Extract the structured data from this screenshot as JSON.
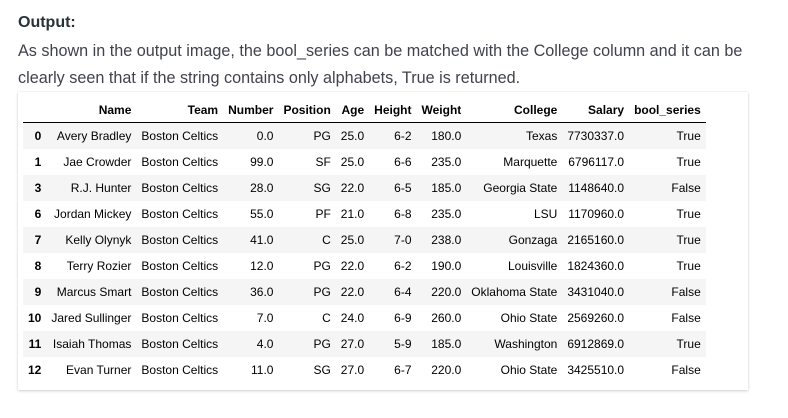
{
  "heading": "Output:",
  "paragraph": "As shown in the output image, the bool_series can be matched with the College column and it can be clearly seen that if the string contains only alphabets, True is returned.",
  "table": {
    "columns": [
      "",
      "Name",
      "Team",
      "Number",
      "Position",
      "Age",
      "Height",
      "Weight",
      "College",
      "Salary",
      "bool_series"
    ],
    "rows": [
      [
        "0",
        "Avery Bradley",
        "Boston Celtics",
        "0.0",
        "PG",
        "25.0",
        "6-2",
        "180.0",
        "Texas",
        "7730337.0",
        "True"
      ],
      [
        "1",
        "Jae Crowder",
        "Boston Celtics",
        "99.0",
        "SF",
        "25.0",
        "6-6",
        "235.0",
        "Marquette",
        "6796117.0",
        "True"
      ],
      [
        "3",
        "R.J. Hunter",
        "Boston Celtics",
        "28.0",
        "SG",
        "22.0",
        "6-5",
        "185.0",
        "Georgia State",
        "1148640.0",
        "False"
      ],
      [
        "6",
        "Jordan Mickey",
        "Boston Celtics",
        "55.0",
        "PF",
        "21.0",
        "6-8",
        "235.0",
        "LSU",
        "1170960.0",
        "True"
      ],
      [
        "7",
        "Kelly Olynyk",
        "Boston Celtics",
        "41.0",
        "C",
        "25.0",
        "7-0",
        "238.0",
        "Gonzaga",
        "2165160.0",
        "True"
      ],
      [
        "8",
        "Terry Rozier",
        "Boston Celtics",
        "12.0",
        "PG",
        "22.0",
        "6-2",
        "190.0",
        "Louisville",
        "1824360.0",
        "True"
      ],
      [
        "9",
        "Marcus Smart",
        "Boston Celtics",
        "36.0",
        "PG",
        "22.0",
        "6-4",
        "220.0",
        "Oklahoma State",
        "3431040.0",
        "False"
      ],
      [
        "10",
        "Jared Sullinger",
        "Boston Celtics",
        "7.0",
        "C",
        "24.0",
        "6-9",
        "260.0",
        "Ohio State",
        "2569260.0",
        "False"
      ],
      [
        "11",
        "Isaiah Thomas",
        "Boston Celtics",
        "4.0",
        "PG",
        "27.0",
        "5-9",
        "185.0",
        "Washington",
        "6912869.0",
        "True"
      ],
      [
        "12",
        "Evan Turner",
        "Boston Celtics",
        "11.0",
        "SG",
        "27.0",
        "6-7",
        "220.0",
        "Ohio State",
        "3425510.0",
        "False"
      ]
    ]
  }
}
